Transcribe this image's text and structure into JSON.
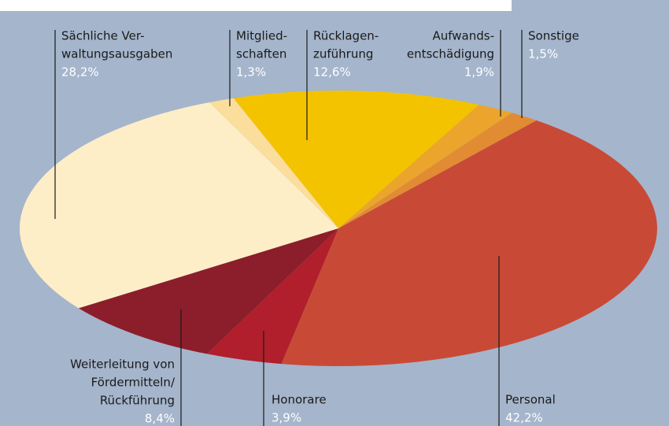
{
  "chart_data": {
    "type": "pie",
    "labels": [
      [
        "Personal"
      ],
      [
        "Honorare"
      ],
      [
        "Weiterleitung von",
        "Fördermitteln/",
        "Rückführung"
      ],
      [
        "Sächliche Ver-",
        "waltungsausgaben"
      ],
      [
        "Mitglied-",
        "schaften"
      ],
      [
        "Rücklagen-",
        "zuführung"
      ],
      [
        "Aufwands-",
        "entschädigung"
      ],
      [
        "Sonstige"
      ]
    ],
    "values": [
      42.2,
      3.9,
      8.4,
      28.2,
      1.3,
      12.6,
      1.9,
      1.5
    ],
    "value_labels": [
      "42,2%",
      "3,9%",
      "8,4%",
      "28,2%",
      "1,3%",
      "12,6%",
      "1,9%",
      "1,5%"
    ],
    "colors": [
      "#c84a36",
      "#b01f2b",
      "#8b1e2a",
      "#fdeec8",
      "#fbdd9c",
      "#f4c300",
      "#eba52c",
      "#e18b33"
    ]
  }
}
